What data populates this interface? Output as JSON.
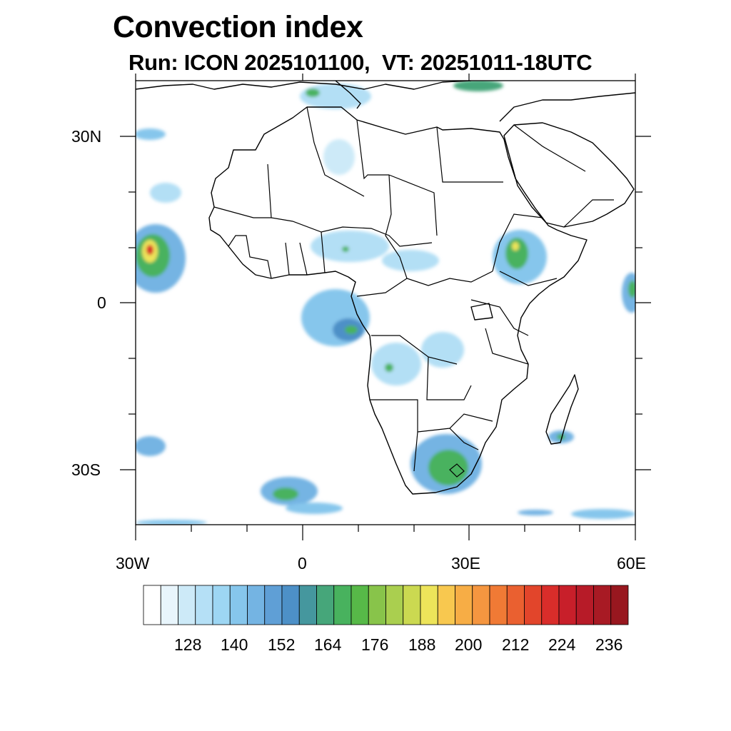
{
  "title": "Convection index",
  "subtitle": "Run: ICON 2025101100,  VT: 20251011-18UTC",
  "axes": {
    "lat_labels": [
      "30N",
      "0",
      "30S"
    ],
    "lon_labels": [
      "30W",
      "0",
      "30E",
      "60E"
    ],
    "lon_range": [
      -30,
      60
    ],
    "lat_range": [
      -40,
      40
    ]
  },
  "colorbar": {
    "tick_labels": [
      "128",
      "140",
      "152",
      "164",
      "176",
      "188",
      "200",
      "212",
      "224",
      "236"
    ],
    "colors": [
      "#ffffff",
      "#e8f5fc",
      "#cdeaf8",
      "#b5e0f6",
      "#9dd6f3",
      "#86c6ec",
      "#74b4e3",
      "#5f9fd6",
      "#4d90c7",
      "#45979e",
      "#46a67a",
      "#48b25e",
      "#57b948",
      "#88c44a",
      "#aacf4f",
      "#cbd951",
      "#ede45a",
      "#f8c84f",
      "#f7ad45",
      "#f59640",
      "#f07a35",
      "#ea6030",
      "#e2452b",
      "#d92d2a",
      "#c81f2a",
      "#b71b28",
      "#a81a24",
      "#98171f"
    ]
  },
  "map_colors": {
    "light": "#b3dff5",
    "mid": "#74b4e3",
    "dark": "#4d90c7",
    "green": "#48b25e",
    "yellow": "#ede45a",
    "orange": "#f59640",
    "red": "#d92d2a"
  }
}
